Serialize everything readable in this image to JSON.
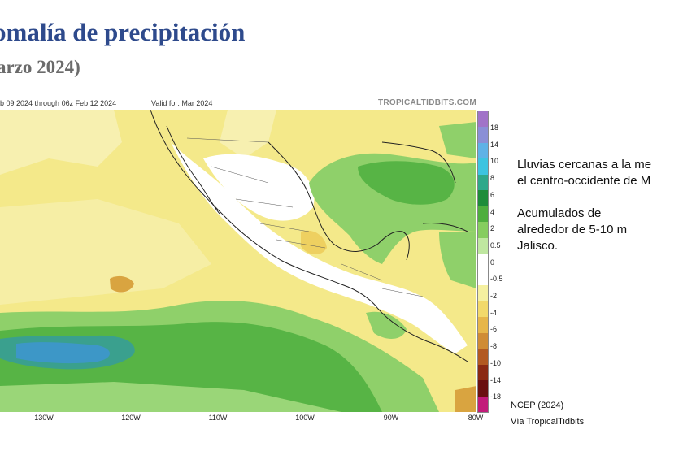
{
  "slide": {
    "title": "omalía de precipitación",
    "subtitle": "arzo 2024)"
  },
  "map": {
    "run_text": "b 09 2024 through 06z Feb 12 2024",
    "valid_text": "Valid for: Mar 2024",
    "brand": "TROPICALTIDBITS.COM",
    "longitude_labels": [
      "130W",
      "120W",
      "110W",
      "100W",
      "90W",
      "80W"
    ],
    "colorbar": {
      "labels": [
        "18",
        "14",
        "10",
        "8",
        "6",
        "4",
        "2",
        "0.5",
        "0",
        "-0.5",
        "-2",
        "-4",
        "-6",
        "-8",
        "-10",
        "-14",
        "-18"
      ],
      "colors": [
        "#a173c8",
        "#8a8fd6",
        "#5fb2e6",
        "#3dc4e0",
        "#2fa88a",
        "#1e8c3a",
        "#4fae3e",
        "#86cd5f",
        "#bfe7a0",
        "#ffffff",
        "#ffffff",
        "#f5f0a0",
        "#f2d96a",
        "#e6b64a",
        "#cf8c35",
        "#b25a22",
        "#8a2a14",
        "#6a1010",
        "#c21b7a"
      ],
      "negative_color": "#f2e07a",
      "positive_color": "#6fbf55"
    }
  },
  "side_text": {
    "line1": "Lluvias cercanas a la me",
    "line2": "el centro-occidente de M",
    "line3a": "Acumulados de",
    "line3b": "alrededor de 5-10 m",
    "line4": "Jalisco."
  },
  "source": {
    "line1": "NCEP (2024)",
    "line2": "Vía TropicalTidbits"
  }
}
